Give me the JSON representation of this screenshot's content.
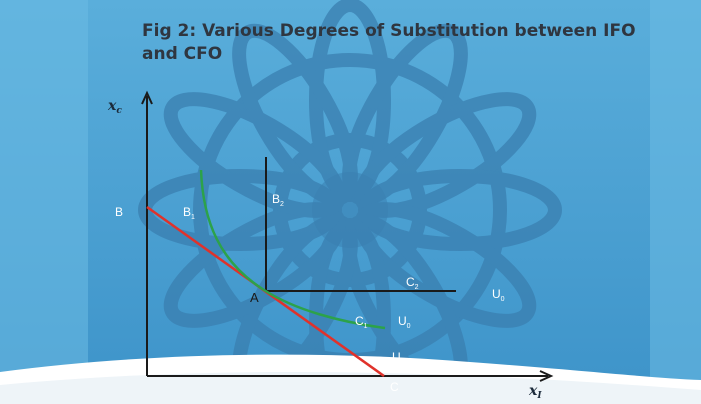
{
  "title": "Fig 2:  Various Degrees of Substitution between IFO and CFO",
  "labels": {
    "y_axis": "x",
    "y_axis_sub": "c",
    "x_axis": "x",
    "x_axis_sub": "I",
    "B": "B",
    "B1": "B",
    "B1_sub": "1",
    "B2": "B",
    "B2_sub": "2",
    "A": "A",
    "C": "C",
    "C1": "C",
    "C1_sub": "1",
    "C2": "C",
    "C2_sub": "2",
    "U0_right": "U",
    "U0_right_sub": "0",
    "U0_mid": "U",
    "U0_mid_sub": "0",
    "U0_low": "U",
    "U0_low_sub": "0"
  },
  "colors": {
    "background": "#4a9fcf",
    "ornament": "#3a7fb0",
    "axis": "#1a1a1a",
    "substitute_line": "#e0322b",
    "convex_curve": "#2ca24a",
    "complements": "#1a1a1a",
    "title": "#2f3640",
    "label": "#ffffff"
  }
}
